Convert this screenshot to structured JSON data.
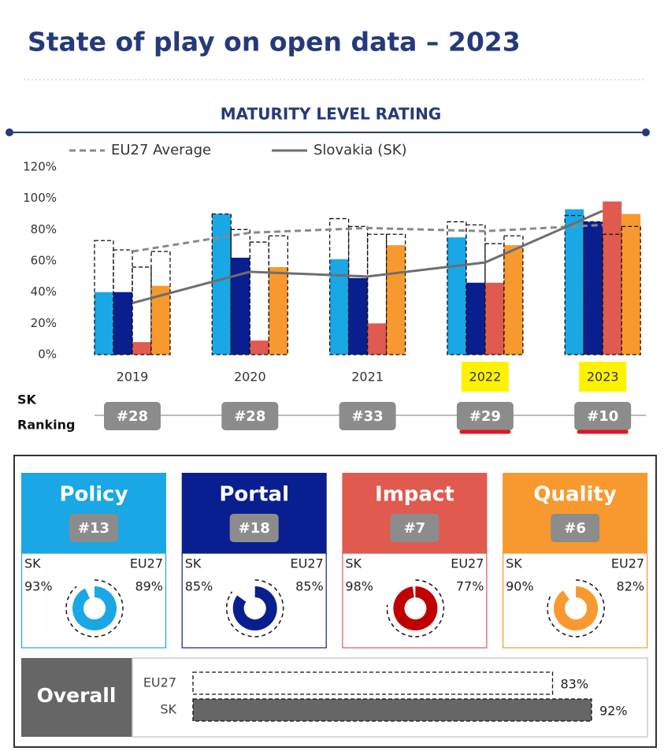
{
  "title": "State of play on open data – 2023",
  "chart_data": {
    "type": "bar",
    "title": "MATURITY LEVEL RATING",
    "categories": [
      "2019",
      "2020",
      "2021",
      "2022",
      "2023"
    ],
    "highlight": [
      false,
      false,
      false,
      true,
      true
    ],
    "ylim": [
      0,
      120
    ],
    "yticks": [
      {
        "value": 0,
        "label": "0%"
      },
      {
        "value": 20,
        "label": "20%"
      },
      {
        "value": 40,
        "label": "40%"
      },
      {
        "value": 60,
        "label": "60%"
      },
      {
        "value": 80,
        "label": "80%"
      },
      {
        "value": 100,
        "label": "100%"
      },
      {
        "value": 120,
        "label": "120%"
      }
    ],
    "grid": false,
    "series": [
      {
        "color": "#1aa7e5",
        "values": [
          40,
          90,
          61,
          75,
          93
        ],
        "eu27_values": [
          73,
          90,
          87,
          85,
          89
        ]
      },
      {
        "color": "#0a1f8f",
        "values": [
          40,
          62,
          49,
          46,
          85
        ],
        "eu27_values": [
          67,
          80,
          82,
          83,
          85
        ]
      },
      {
        "color": "#e05a4f",
        "values": [
          8,
          9,
          20,
          46,
          98
        ],
        "eu27_values": [
          56,
          72,
          77,
          71,
          77
        ]
      },
      {
        "color": "#f7992e",
        "values": [
          44,
          56,
          70,
          70,
          90
        ],
        "eu27_values": [
          66,
          76,
          77,
          76,
          82
        ]
      }
    ],
    "lines": [
      {
        "name": "EU27 Average",
        "color": "#8a8a8a",
        "dashed": true,
        "values": [
          66,
          78,
          81,
          79,
          83
        ]
      },
      {
        "name": "Slovakia (SK)",
        "color": "#6e6e6e",
        "dashed": false,
        "values": [
          33,
          53,
          50,
          59,
          92
        ]
      }
    ],
    "ranking_label": [
      "SK",
      "Ranking"
    ],
    "rankings": [
      "#28",
      "#28",
      "#33",
      "#29",
      "#10"
    ]
  },
  "scorecards": {
    "sk_label": "SK",
    "eu27_label": "EU27",
    "scale": [
      0,
      100
    ],
    "cards": [
      {
        "title": "Policy",
        "rank": "#13",
        "sk": 93,
        "sk_label": "93%",
        "eu27": 89,
        "eu27_label": "89%",
        "ring_color": "#1aa7e5"
      },
      {
        "title": "Portal",
        "rank": "#18",
        "sk": 85,
        "sk_label": "85%",
        "eu27": 85,
        "eu27_label": "85%",
        "ring_color": "#0a1f8f"
      },
      {
        "title": "Impact",
        "rank": "#7",
        "sk": 98,
        "sk_label": "98%",
        "eu27": 77,
        "eu27_label": "77%",
        "ring_color": "#c00000"
      },
      {
        "title": "Quality",
        "rank": "#6",
        "sk": 90,
        "sk_label": "90%",
        "eu27": 82,
        "eu27_label": "82%",
        "ring_color": "#f7992e"
      }
    ]
  },
  "overall": {
    "title": "Overall",
    "xlim": [
      0,
      100
    ],
    "rows": [
      {
        "name": "EU27",
        "value": 83,
        "value_label": "83%"
      },
      {
        "name": "SK",
        "value": 92,
        "value_label": "92%"
      }
    ]
  }
}
